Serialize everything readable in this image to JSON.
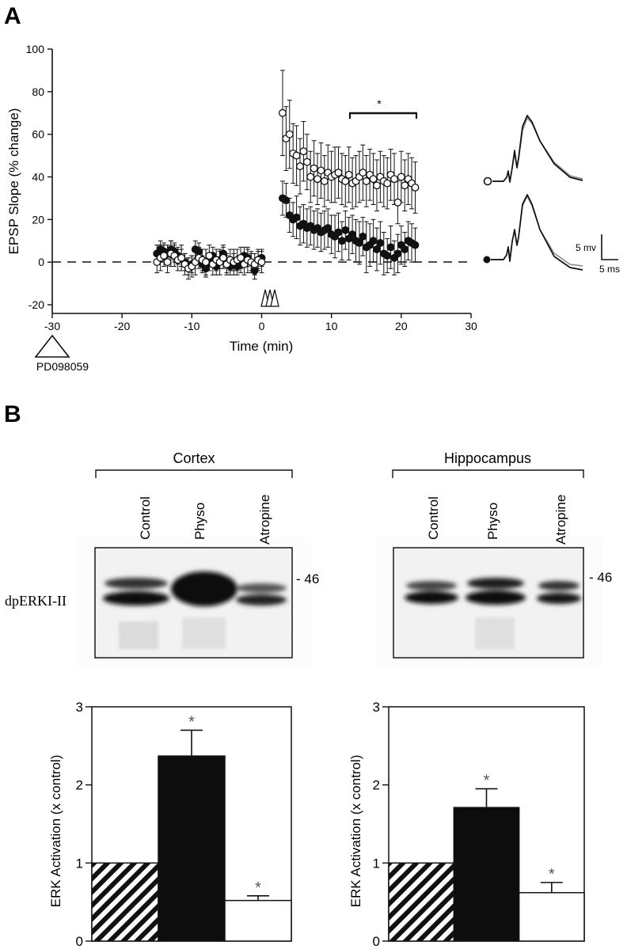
{
  "panel_a": {
    "label": "A",
    "drug": "PD098059",
    "significance": "*",
    "scale_mv": "5 mv",
    "scale_ms": "5 ms"
  },
  "panel_b": {
    "label": "B",
    "cortex_label": "Cortex",
    "hippocampus_label": "Hippocampus",
    "lanes": [
      "Control",
      "Physo",
      "Atropine"
    ],
    "marker": "- 46",
    "blot_label": "dpERKI-II",
    "star": "*"
  },
  "chart_data": [
    {
      "type": "scatter",
      "xlabel": "Time (min)",
      "ylabel": "EPSP Slope (% change)",
      "xlim": [
        -30,
        30
      ],
      "ylim": [
        -20,
        100
      ],
      "xticks": [
        -30,
        -20,
        -10,
        0,
        10,
        20,
        30
      ],
      "yticks": [
        -20,
        0,
        20,
        40,
        60,
        80,
        100
      ],
      "reference_line_y": 0,
      "significance_bar_x": [
        12,
        22
      ],
      "series": [
        {
          "marker": "open-circle",
          "x": [
            -15,
            -14.5,
            -14,
            -13.5,
            -13,
            -12.5,
            -12,
            -11.5,
            -11,
            -10.5,
            -10,
            -9.5,
            -9,
            -8.5,
            -8,
            -7.5,
            -7,
            -6.5,
            -6,
            -5.5,
            -5,
            -4.5,
            -4,
            -3.5,
            -3,
            -2.5,
            -2,
            -1.5,
            -1,
            -0.5,
            0,
            3,
            3.5,
            4,
            4.5,
            5,
            5.5,
            6,
            6.5,
            7,
            7.5,
            8,
            8.5,
            9,
            9.5,
            10,
            10.5,
            11,
            11.5,
            12,
            12.5,
            13,
            13.5,
            14,
            14.5,
            15,
            15.5,
            16,
            16.5,
            17,
            17.5,
            18,
            18.5,
            19,
            19.5,
            20,
            20.5,
            21,
            21.5,
            22
          ],
          "y": [
            0,
            2,
            3,
            0,
            4,
            3,
            1,
            2,
            -1,
            -3,
            -2,
            0,
            2,
            1,
            0,
            3,
            -1,
            1,
            0,
            2,
            -1,
            1,
            0,
            1,
            2,
            -1,
            1,
            0,
            -1,
            1,
            0,
            70,
            58,
            60,
            51,
            50,
            45,
            52,
            47,
            40,
            44,
            39,
            43,
            38,
            42,
            40,
            41,
            42,
            39,
            38,
            41,
            37,
            38,
            40,
            42,
            38,
            41,
            39,
            36,
            40,
            38,
            37,
            41,
            39,
            28,
            40,
            36,
            39,
            37,
            35
          ],
          "err": [
            5,
            6,
            5,
            5,
            6,
            5,
            5,
            6,
            5,
            5,
            5,
            6,
            5,
            5,
            6,
            5,
            5,
            5,
            6,
            5,
            5,
            5,
            6,
            5,
            5,
            5,
            6,
            5,
            5,
            5,
            5,
            20,
            15,
            16,
            14,
            14,
            13,
            14,
            13,
            12,
            13,
            12,
            13,
            12,
            13,
            12,
            13,
            12,
            12,
            12,
            13,
            12,
            12,
            12,
            13,
            12,
            12,
            12,
            12,
            12,
            12,
            12,
            12,
            12,
            10,
            12,
            12,
            12,
            12,
            12
          ]
        },
        {
          "marker": "filled-circle",
          "x": [
            -15,
            -14.5,
            -14,
            -13.5,
            -13,
            -12.5,
            -12,
            -11.5,
            -11,
            -10.5,
            -10,
            -9.5,
            -9,
            -8.5,
            -8,
            -7.5,
            -7,
            -6.5,
            -6,
            -5.5,
            -5,
            -4.5,
            -4,
            -3.5,
            -3,
            -2.5,
            -2,
            -1.5,
            -1,
            -0.5,
            0,
            3,
            3.5,
            4,
            4.5,
            5,
            5.5,
            6,
            6.5,
            7,
            7.5,
            8,
            8.5,
            9,
            9.5,
            10,
            10.5,
            11,
            11.5,
            12,
            12.5,
            13,
            13.5,
            14,
            14.5,
            15,
            15.5,
            16,
            16.5,
            17,
            17.5,
            18,
            18.5,
            19,
            19.5,
            20,
            20.5,
            21,
            21.5,
            22
          ],
          "y": [
            4,
            6,
            5,
            4,
            6,
            5,
            3,
            2,
            0,
            -2,
            -1,
            6,
            5,
            -1,
            -3,
            0,
            3,
            -2,
            1,
            4,
            -1,
            -2,
            0,
            -2,
            -1,
            3,
            2,
            0,
            -4,
            1,
            2,
            30,
            29,
            22,
            20,
            21,
            17,
            18,
            16,
            17,
            15,
            16,
            14,
            15,
            16,
            13,
            12,
            14,
            10,
            15,
            11,
            13,
            10,
            9,
            12,
            7,
            8,
            10,
            6,
            9,
            4,
            3,
            7,
            2,
            4,
            8,
            6,
            10,
            9,
            8
          ],
          "err": [
            4,
            4,
            4,
            4,
            4,
            4,
            4,
            4,
            4,
            4,
            4,
            4,
            4,
            4,
            4,
            4,
            4,
            4,
            4,
            4,
            4,
            4,
            4,
            4,
            4,
            4,
            4,
            4,
            4,
            4,
            4,
            8,
            8,
            8,
            8,
            10,
            9,
            9,
            9,
            9,
            9,
            9,
            9,
            9,
            9,
            9,
            10,
            9,
            9,
            9,
            10,
            9,
            10,
            10,
            9,
            12,
            10,
            10,
            10,
            10,
            10,
            8,
            10,
            8,
            9,
            9,
            8,
            9,
            9,
            8
          ]
        }
      ]
    },
    {
      "type": "bar",
      "ylabel": "ERK Activation (x control)",
      "ylim": [
        0,
        3
      ],
      "yticks": [
        0,
        1,
        2,
        3
      ],
      "categories": [
        "Control",
        "Physo",
        "Atropine"
      ],
      "values": [
        1.0,
        2.37,
        0.52
      ],
      "errors": [
        0,
        0.33,
        0.06
      ],
      "fills": [
        "hatched",
        "black",
        "white"
      ],
      "stars": [
        false,
        true,
        true
      ]
    },
    {
      "type": "bar",
      "ylabel": "ERK Activation (x control)",
      "ylim": [
        0,
        3
      ],
      "yticks": [
        0,
        1,
        2,
        3
      ],
      "categories": [
        "Control",
        "Physo",
        "Atropine"
      ],
      "values": [
        1.0,
        1.71,
        0.62
      ],
      "errors": [
        0,
        0.24,
        0.13
      ],
      "fills": [
        "hatched",
        "black",
        "white"
      ],
      "stars": [
        false,
        true,
        true
      ]
    }
  ]
}
